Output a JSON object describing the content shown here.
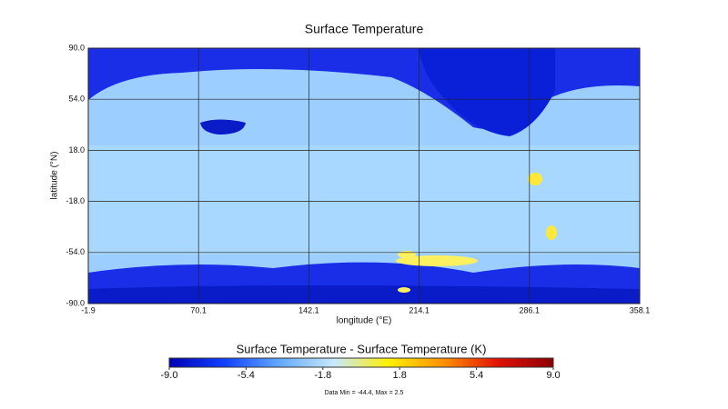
{
  "chart_data": {
    "type": "heatmap",
    "title": "Surface Temperature",
    "xlabel": "longitude (°E)",
    "ylabel": "latitude (°N)",
    "xlim": [
      -1.9,
      358.1
    ],
    "xticks": [
      -1.9,
      70.1,
      142.1,
      214.1,
      286.1,
      358.1
    ],
    "ylim": [
      -90,
      90
    ],
    "yticks": [
      {
        "value": 90,
        "label": "90.0"
      },
      {
        "value": 54,
        "label": "54.0"
      },
      {
        "value": 18,
        "label": "18.0"
      },
      {
        "value": -18,
        "label": "-18.0"
      },
      {
        "value": -54,
        "label": "-54.0"
      },
      {
        "value": -90,
        "label": "-90.0"
      }
    ],
    "grid": true,
    "colorbar": {
      "title": "Surface Temperature - Surface Temperature (K)",
      "clim": [
        -9,
        9
      ],
      "ticks": [
        {
          "value": -9,
          "label": "-9.0"
        },
        {
          "value": -5.4,
          "label": "-5.4"
        },
        {
          "value": -1.8,
          "label": "-1.8"
        },
        {
          "value": 1.8,
          "label": "1.8"
        },
        {
          "value": 5.4,
          "label": "5.4"
        },
        {
          "value": 9,
          "label": "9.0"
        }
      ],
      "colormap": [
        "#0000b4",
        "#1040ff",
        "#60a8ff",
        "#c8e8ff",
        "#fff000",
        "#ff9000",
        "#e01000",
        "#8c0000"
      ],
      "note": "Data Min = -44.4, Max = 2.5"
    }
  }
}
